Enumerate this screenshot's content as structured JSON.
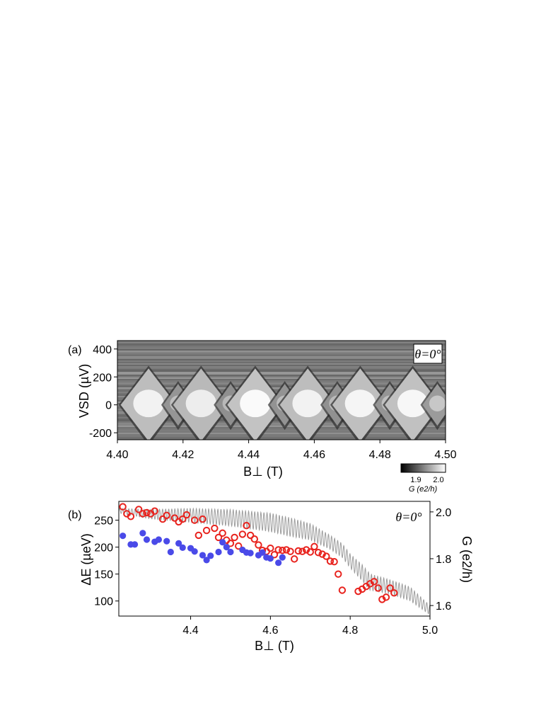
{
  "chart_data": [
    {
      "type": "heatmap",
      "panel_label": "(a)",
      "inset_label": "θ=0°",
      "xlabel": "B⊥ (T)",
      "ylabel": "VSD (µV)",
      "xlim": [
        4.4,
        4.5
      ],
      "ylim": [
        -250,
        460
      ],
      "xticks": [
        "4.40",
        "4.42",
        "4.44",
        "4.46",
        "4.48",
        "4.50"
      ],
      "yticks": [
        "-200",
        "0",
        "200",
        "400"
      ],
      "colorbar": {
        "label": "G (e2/h)",
        "ticks": [
          "1.9",
          "2.0"
        ],
        "range": [
          1.85,
          2.02
        ],
        "colors": [
          "#000000",
          "#ffffff"
        ]
      },
      "diamonds": [
        {
          "center_B": 4.4095,
          "half_width": 0.0085,
          "height": 260,
          "level": 0.95
        },
        {
          "center_B": 4.4185,
          "half_width": 0.0045,
          "height": 150,
          "level": 0.75
        },
        {
          "center_B": 4.4255,
          "half_width": 0.0085,
          "height": 260,
          "level": 0.93
        },
        {
          "center_B": 4.4345,
          "half_width": 0.0045,
          "height": 150,
          "level": 0.72
        },
        {
          "center_B": 4.442,
          "half_width": 0.0085,
          "height": 260,
          "level": 0.98
        },
        {
          "center_B": 4.451,
          "half_width": 0.0045,
          "height": 150,
          "level": 0.74
        },
        {
          "center_B": 4.458,
          "half_width": 0.0085,
          "height": 260,
          "level": 0.95
        },
        {
          "center_B": 4.467,
          "half_width": 0.0045,
          "height": 150,
          "level": 0.73
        },
        {
          "center_B": 4.474,
          "half_width": 0.0085,
          "height": 260,
          "level": 0.96
        },
        {
          "center_B": 4.483,
          "half_width": 0.0045,
          "height": 150,
          "level": 0.75
        },
        {
          "center_B": 4.49,
          "half_width": 0.0085,
          "height": 260,
          "level": 0.97
        },
        {
          "center_B": 4.4975,
          "half_width": 0.0045,
          "height": 150,
          "level": 0.78
        }
      ]
    },
    {
      "type": "scatter",
      "panel_label": "(b)",
      "inset_label": "θ=0°",
      "xlabel": "B⊥ (T)",
      "ylabel": "ΔE (µeV)",
      "y2label": "G (e2/h)",
      "xlim": [
        4.22,
        5.0
      ],
      "ylim": [
        72,
        285
      ],
      "y2lim": [
        1.555,
        2.045
      ],
      "xticks": [
        "4.4",
        "4.6",
        "4.8",
        "5.0"
      ],
      "yticks": [
        "100",
        "150",
        "200",
        "250"
      ],
      "y2ticks": [
        "1.6",
        "1.8",
        "2.0"
      ],
      "series": [
        {
          "marker": "open-circle",
          "color": "#e8231e",
          "x": [
            4.23,
            4.24,
            4.25,
            4.27,
            4.28,
            4.29,
            4.3,
            4.31,
            4.33,
            4.34,
            4.36,
            4.37,
            4.38,
            4.39,
            4.41,
            4.42,
            4.43,
            4.44,
            4.46,
            4.47,
            4.48,
            4.49,
            4.5,
            4.51,
            4.52,
            4.53,
            4.54,
            4.55,
            4.56,
            4.57,
            4.58,
            4.59,
            4.6,
            4.61,
            4.62,
            4.63,
            4.64,
            4.65,
            4.66,
            4.67,
            4.68,
            4.69,
            4.7,
            4.71,
            4.72,
            4.73,
            4.74,
            4.75,
            4.76,
            4.77,
            4.78,
            4.82,
            4.83,
            4.84,
            4.85,
            4.86,
            4.87,
            4.88,
            4.89,
            4.9,
            4.91
          ],
          "values": [
            275,
            262,
            257,
            270,
            262,
            264,
            262,
            267,
            252,
            259,
            254,
            247,
            252,
            260,
            250,
            222,
            252,
            231,
            235,
            218,
            226,
            213,
            207,
            218,
            202,
            224,
            240,
            222,
            215,
            204,
            194,
            192,
            198,
            186,
            195,
            194,
            195,
            192,
            178,
            193,
            192,
            195,
            191,
            201,
            190,
            187,
            183,
            174,
            173,
            150,
            120,
            118,
            122,
            127,
            132,
            136,
            124,
            103,
            107,
            124,
            115
          ]
        },
        {
          "marker": "filled-circle",
          "color": "#4a4ae8",
          "x": [
            4.23,
            4.25,
            4.26,
            4.28,
            4.29,
            4.31,
            4.32,
            4.34,
            4.35,
            4.37,
            4.38,
            4.4,
            4.41,
            4.43,
            4.44,
            4.45,
            4.47,
            4.48,
            4.49,
            4.5,
            4.53,
            4.54,
            4.55,
            4.57,
            4.58,
            4.59,
            4.6,
            4.62,
            4.63
          ],
          "values": [
            221,
            205,
            205,
            226,
            214,
            210,
            214,
            211,
            191,
            207,
            199,
            198,
            192,
            185,
            176,
            184,
            191,
            209,
            200,
            191,
            195,
            190,
            189,
            185,
            190,
            181,
            179,
            171,
            181
          ]
        },
        {
          "type": "line",
          "axis": "right",
          "color": "#9c9c9c",
          "x_start": 4.22,
          "x_end": 5.0,
          "period": 0.0077,
          "envelope_x": [
            4.22,
            4.3,
            4.4,
            4.5,
            4.6,
            4.65,
            4.7,
            4.75,
            4.78,
            4.8,
            4.83,
            4.85,
            4.9,
            4.95,
            5.0
          ],
          "envelope_mean": [
            2.005,
            1.99,
            1.985,
            1.975,
            1.955,
            1.935,
            1.915,
            1.87,
            1.835,
            1.79,
            1.74,
            1.7,
            1.68,
            1.65,
            1.58
          ],
          "envelope_amp": [
            0.01,
            0.02,
            0.03,
            0.035,
            0.04,
            0.04,
            0.035,
            0.03,
            0.03,
            0.03,
            0.035,
            0.035,
            0.03,
            0.03,
            0.02
          ]
        }
      ]
    }
  ]
}
